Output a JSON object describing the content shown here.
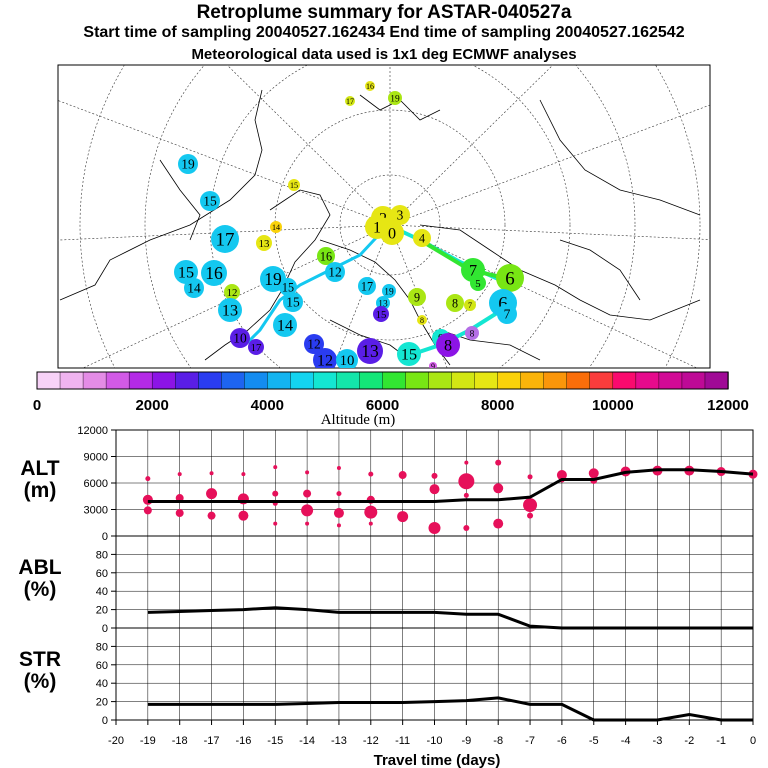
{
  "header": {
    "title": "Retroplume summary for ASTAR-040527a",
    "sampling": "Start time of sampling 20040527.162434     End time of sampling 20040527.162542",
    "meteo": "Meteorological data used is 1x1 deg ECMWF analyses"
  },
  "colorbar": {
    "label": "Altitude (m)",
    "tick_labels": [
      "0",
      "2000",
      "4000",
      "6000",
      "8000",
      "10000",
      "12000"
    ],
    "colors": [
      "#f7d2f7",
      "#f0b4f0",
      "#e48ce6",
      "#d25ae6",
      "#b42ae6",
      "#8c14e6",
      "#5a1ee6",
      "#2a3cf0",
      "#1e64f0",
      "#148cf0",
      "#14b4f0",
      "#14d4f0",
      "#14e6d2",
      "#14e6aa",
      "#14e678",
      "#32e632",
      "#78e614",
      "#aae614",
      "#d2e614",
      "#e6e614",
      "#fad20a",
      "#fab40a",
      "#fa960a",
      "#fa6e0a",
      "#fa3c3c",
      "#fa0a6e",
      "#e60a8c",
      "#d20a96",
      "#be0a96",
      "#a00a96"
    ]
  },
  "map_labels": [
    {
      "t": "16",
      "c": "#e6e614"
    },
    {
      "t": "17",
      "c": "#d2e614"
    },
    {
      "t": "19",
      "c": "#aae614"
    },
    {
      "t": "19",
      "c": "#14c8f0"
    },
    {
      "t": "15",
      "c": "#14c8f0"
    },
    {
      "t": "15",
      "c": "#e6e614"
    },
    {
      "t": "17",
      "c": "#14c8f0"
    },
    {
      "t": "14",
      "c": "#fad20a"
    },
    {
      "t": "13",
      "c": "#e6e614"
    },
    {
      "t": "15",
      "c": "#14c8f0"
    },
    {
      "t": "14",
      "c": "#14c8f0"
    },
    {
      "t": "16",
      "c": "#14c8f0"
    },
    {
      "t": "12",
      "c": "#aae614"
    },
    {
      "t": "13",
      "c": "#14c8f0"
    },
    {
      "t": "10",
      "c": "#5a1ee6"
    },
    {
      "t": "17",
      "c": "#5a1ee6"
    },
    {
      "t": "19",
      "c": "#14c8f0"
    },
    {
      "t": "15",
      "c": "#14c8f0"
    },
    {
      "t": "16",
      "c": "#78e614"
    },
    {
      "t": "12",
      "c": "#14c8f0"
    },
    {
      "t": "2",
      "c": "#e6e614"
    },
    {
      "t": "3",
      "c": "#e6e614"
    },
    {
      "t": "1",
      "c": "#e6e614"
    },
    {
      "t": "0",
      "c": "#e6e614"
    },
    {
      "t": "4",
      "c": "#e6e614"
    },
    {
      "t": "7",
      "c": "#32e632"
    },
    {
      "t": "5",
      "c": "#32e632"
    },
    {
      "t": "6",
      "c": "#78e614"
    },
    {
      "t": "9",
      "c": "#aae614"
    },
    {
      "t": "8",
      "c": "#aae614"
    },
    {
      "t": "7",
      "c": "#d2e614"
    },
    {
      "t": "6",
      "c": "#14c8f0"
    },
    {
      "t": "7",
      "c": "#14c8f0"
    },
    {
      "t": "8",
      "c": "#e6e614"
    },
    {
      "t": "8",
      "c": "#b46ee6"
    },
    {
      "t": "9",
      "c": "#14e6d2"
    },
    {
      "t": "8",
      "c": "#8c14e6"
    },
    {
      "t": "17",
      "c": "#14c8f0"
    },
    {
      "t": "13",
      "c": "#14c8f0"
    },
    {
      "t": "15",
      "c": "#5a1ee6"
    },
    {
      "t": "19",
      "c": "#14c8f0"
    },
    {
      "t": "15",
      "c": "#14c8f0"
    },
    {
      "t": "14",
      "c": "#14c8f0"
    },
    {
      "t": "12",
      "c": "#2a3cf0"
    },
    {
      "t": "12",
      "c": "#2a3cf0"
    },
    {
      "t": "10",
      "c": "#14c8f0"
    },
    {
      "t": "13",
      "c": "#5a1ee6"
    },
    {
      "t": "15",
      "c": "#14e6d2"
    },
    {
      "t": "9",
      "c": "#d25ae6"
    }
  ],
  "chart_data": [
    {
      "type": "scatter",
      "title": "ALT",
      "ylabel": "ALT\n(m)",
      "ylim": [
        0,
        12000
      ],
      "yticks": [
        "0",
        "3000",
        "6000",
        "9000",
        "12000"
      ],
      "line": {
        "x": [
          -19,
          -18,
          -17,
          -16,
          -15,
          -14,
          -13,
          -12,
          -11,
          -10,
          -9,
          -8,
          -7,
          -6,
          -5,
          -4,
          -3,
          -2,
          -1,
          0
        ],
        "y": [
          3900,
          3900,
          3900,
          3900,
          3900,
          3900,
          3900,
          3900,
          3900,
          3900,
          4100,
          4100,
          4400,
          6400,
          6400,
          7200,
          7500,
          7500,
          7300,
          7000
        ]
      },
      "points": [
        {
          "x": -19,
          "y": 6500,
          "r": 2.5
        },
        {
          "x": -19,
          "y": 4100,
          "r": 5
        },
        {
          "x": -19,
          "y": 2900,
          "r": 4
        },
        {
          "x": -18,
          "y": 7000,
          "r": 2
        },
        {
          "x": -18,
          "y": 4300,
          "r": 4
        },
        {
          "x": -18,
          "y": 2600,
          "r": 4
        },
        {
          "x": -17,
          "y": 7100,
          "r": 2
        },
        {
          "x": -17,
          "y": 4800,
          "r": 5.5
        },
        {
          "x": -17,
          "y": 2300,
          "r": 4
        },
        {
          "x": -16,
          "y": 7000,
          "r": 2
        },
        {
          "x": -16,
          "y": 4200,
          "r": 5.5
        },
        {
          "x": -16,
          "y": 2300,
          "r": 5
        },
        {
          "x": -15,
          "y": 7800,
          "r": 2
        },
        {
          "x": -15,
          "y": 4800,
          "r": 3
        },
        {
          "x": -15,
          "y": 3700,
          "r": 2.5
        },
        {
          "x": -15,
          "y": 1400,
          "r": 2
        },
        {
          "x": -14,
          "y": 7200,
          "r": 2
        },
        {
          "x": -14,
          "y": 4800,
          "r": 4
        },
        {
          "x": -14,
          "y": 2900,
          "r": 6
        },
        {
          "x": -14,
          "y": 1400,
          "r": 2
        },
        {
          "x": -13,
          "y": 7700,
          "r": 2
        },
        {
          "x": -13,
          "y": 4800,
          "r": 2.5
        },
        {
          "x": -13,
          "y": 2600,
          "r": 5
        },
        {
          "x": -13,
          "y": 1200,
          "r": 2
        },
        {
          "x": -12,
          "y": 7000,
          "r": 2.5
        },
        {
          "x": -12,
          "y": 4100,
          "r": 4
        },
        {
          "x": -12,
          "y": 2700,
          "r": 6.5
        },
        {
          "x": -12,
          "y": 1400,
          "r": 2
        },
        {
          "x": -11,
          "y": 6900,
          "r": 4
        },
        {
          "x": -11,
          "y": 2200,
          "r": 5.5
        },
        {
          "x": -10,
          "y": 6800,
          "r": 3
        },
        {
          "x": -10,
          "y": 5300,
          "r": 5
        },
        {
          "x": -10,
          "y": 900,
          "r": 6
        },
        {
          "x": -9,
          "y": 8300,
          "r": 2
        },
        {
          "x": -9,
          "y": 6200,
          "r": 8
        },
        {
          "x": -9,
          "y": 4600,
          "r": 2.5
        },
        {
          "x": -9,
          "y": 900,
          "r": 3
        },
        {
          "x": -8,
          "y": 8300,
          "r": 3
        },
        {
          "x": -8,
          "y": 5400,
          "r": 5
        },
        {
          "x": -8,
          "y": 1400,
          "r": 5
        },
        {
          "x": -7,
          "y": 6700,
          "r": 2.5
        },
        {
          "x": -7,
          "y": 3500,
          "r": 7
        },
        {
          "x": -7,
          "y": 2300,
          "r": 3
        },
        {
          "x": -6,
          "y": 6900,
          "r": 5
        },
        {
          "x": -6,
          "y": 6400,
          "r": 3
        },
        {
          "x": -5,
          "y": 7100,
          "r": 5
        },
        {
          "x": -5,
          "y": 6300,
          "r": 3.5
        },
        {
          "x": -4,
          "y": 7300,
          "r": 5
        },
        {
          "x": -3,
          "y": 7400,
          "r": 5
        },
        {
          "x": -2,
          "y": 7400,
          "r": 5
        },
        {
          "x": -1,
          "y": 7300,
          "r": 4.5
        },
        {
          "x": 0,
          "y": 7000,
          "r": 4.5
        }
      ]
    },
    {
      "type": "line",
      "title": "ABL",
      "ylabel": "ABL\n(%)",
      "ylim": [
        0,
        100
      ],
      "yticks": [
        "0",
        "20",
        "40",
        "60",
        "80"
      ],
      "x": [
        -19,
        -18,
        -17,
        -16,
        -15,
        -14,
        -13,
        -12,
        -11,
        -10,
        -9,
        -8,
        -7,
        -6,
        -5,
        -4,
        -3,
        -2,
        -1,
        0
      ],
      "y": [
        17,
        18,
        19,
        20,
        22,
        20,
        17,
        17,
        17,
        17,
        15,
        15,
        2,
        0,
        0,
        0,
        0,
        0,
        0,
        0
      ]
    },
    {
      "type": "line",
      "title": "STR",
      "ylabel": "STR\n(%)",
      "ylim": [
        0,
        100
      ],
      "yticks": [
        "0",
        "20",
        "40",
        "60",
        "80"
      ],
      "x": [
        -19,
        -18,
        -17,
        -16,
        -15,
        -14,
        -13,
        -12,
        -11,
        -10,
        -9,
        -8,
        -7,
        -6,
        -5,
        -4,
        -3,
        -2,
        -1,
        0
      ],
      "y": [
        17,
        17,
        17,
        17,
        17,
        18,
        19,
        19,
        19,
        20,
        21,
        24,
        17,
        17,
        0,
        0,
        0,
        6,
        0,
        0
      ]
    }
  ],
  "xaxis": {
    "label": "Travel time (days)",
    "ticks": [
      "-20",
      "-19",
      "-18",
      "-17",
      "-16",
      "-15",
      "-14",
      "-13",
      "-12",
      "-11",
      "-10",
      "-9",
      "-8",
      "-7",
      "-6",
      "-5",
      "-4",
      "-3",
      "-2",
      "-1",
      "0"
    ]
  }
}
